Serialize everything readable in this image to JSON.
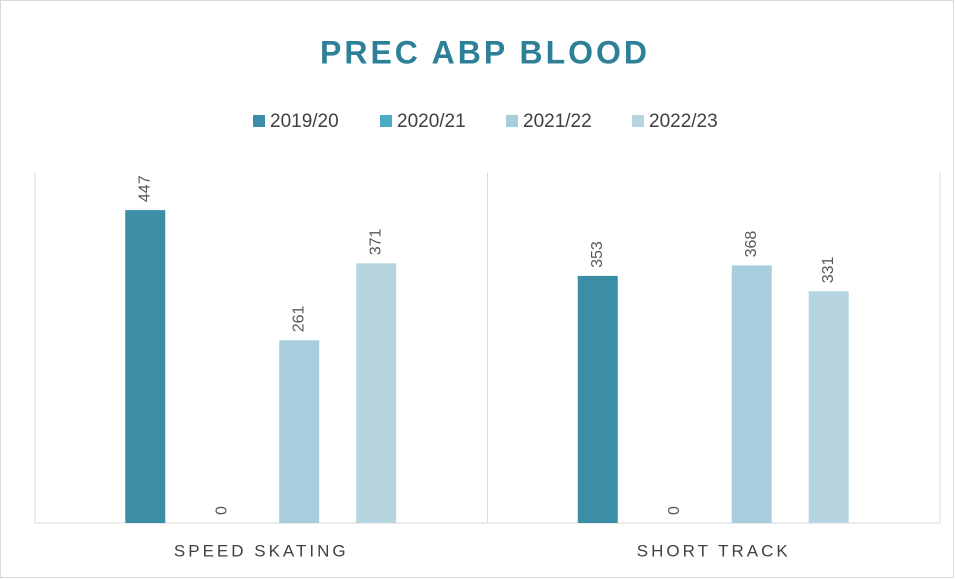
{
  "chart_data": {
    "type": "bar",
    "title": "PREC ABP BLOOD",
    "categories": [
      "SPEED SKATING",
      "SHORT TRACK"
    ],
    "series": [
      {
        "name": "2019/20",
        "color": "#3b8ea5",
        "values": [
          447,
          353
        ]
      },
      {
        "name": "2020/21",
        "color": "#4bacc6",
        "values": [
          0,
          0
        ]
      },
      {
        "name": "2021/22",
        "color": "#a8cedd",
        "values": [
          261,
          368
        ]
      },
      {
        "name": "2022/23",
        "color": "#b7d5e0",
        "values": [
          371,
          331
        ]
      }
    ],
    "ylim": [
      0,
      500
    ],
    "legend": "top"
  }
}
